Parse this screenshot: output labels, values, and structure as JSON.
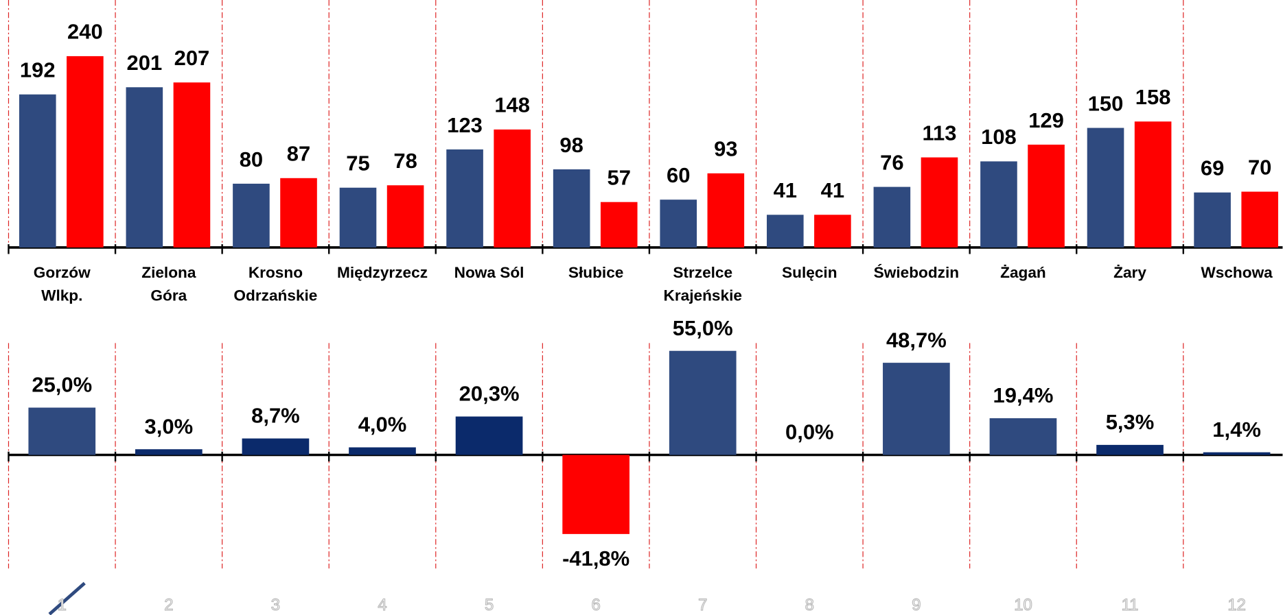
{
  "chart_data": [
    {
      "type": "bar",
      "categories": [
        "Gorzów\nWlkp.",
        "Zielona\nGóra",
        "Krosno\nOdrzańskie",
        "Międzyrzecz",
        "Nowa Sól",
        "Słubice",
        "Strzelce\nKrajeńskie",
        "Sulęcin",
        "Świebodzin",
        "Żagań",
        "Żary",
        "Wschowa"
      ],
      "series": [
        {
          "color": "#2f4a7f",
          "values": [
            192,
            201,
            80,
            75,
            123,
            98,
            60,
            41,
            76,
            108,
            150,
            69
          ]
        },
        {
          "color": "#ff0000",
          "values": [
            240,
            207,
            87,
            78,
            148,
            57,
            93,
            41,
            113,
            129,
            158,
            70
          ]
        }
      ],
      "ylim": [
        0,
        250
      ]
    },
    {
      "type": "bar",
      "categories": [
        "1",
        "2",
        "3",
        "4",
        "5",
        "6",
        "7",
        "8",
        "9",
        "10",
        "11",
        "12"
      ],
      "values": [
        25.0,
        3.0,
        8.7,
        4.0,
        20.3,
        -41.8,
        55.0,
        0.0,
        48.7,
        19.4,
        5.3,
        1.4
      ],
      "value_labels": [
        "25,0%",
        "3,0%",
        "8,7%",
        "4,0%",
        "20,3%",
        "-41,8%",
        "55,0%",
        "0,0%",
        "48,7%",
        "19,4%",
        "5,3%",
        "1,4%"
      ],
      "colors": [
        "#2f4a7f",
        "#0b2a6b",
        "#0b2a6b",
        "#0b2a6b",
        "#0b2a6b",
        "#ff0000",
        "#2f4a7f",
        "#2f4a7f",
        "#2f4a7f",
        "#2f4a7f",
        "#0b2a6b",
        "#0b2a6b"
      ],
      "ylim": [
        -60,
        60
      ]
    }
  ]
}
